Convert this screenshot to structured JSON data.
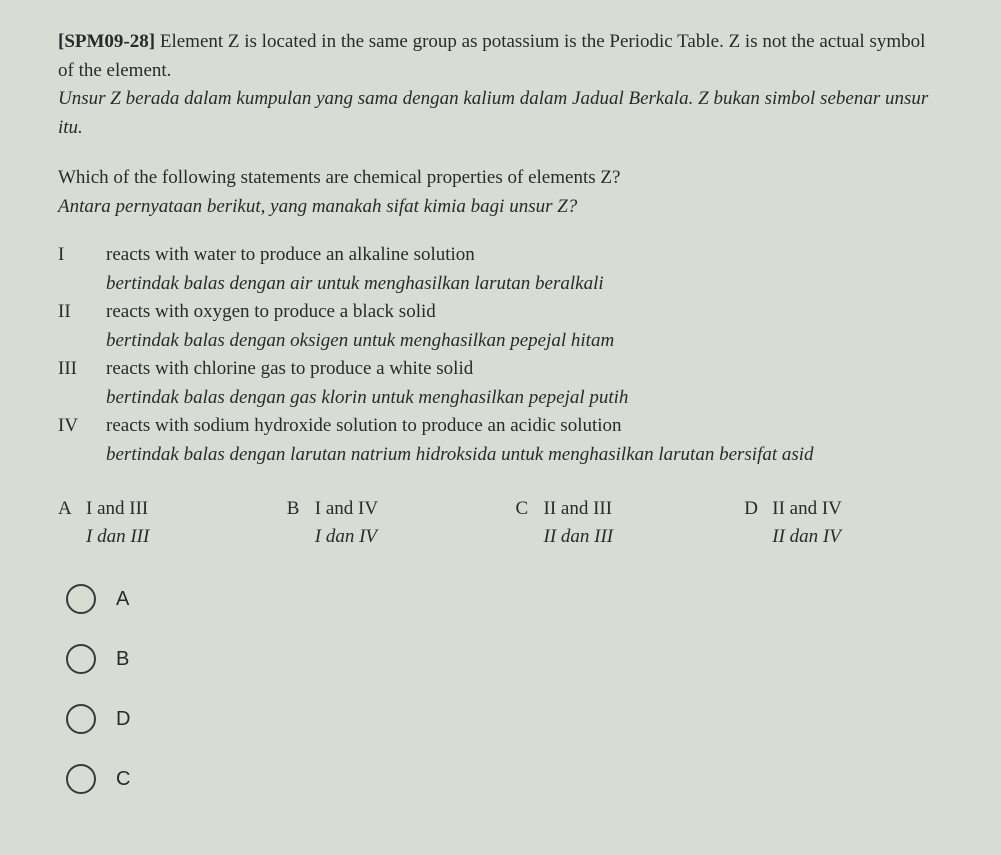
{
  "background_color": "#d8dcd4",
  "text_color": "#2a2a2a",
  "question": {
    "code": "[SPM09-28]",
    "text_en": "Element Z is located in the same group as potassium is the Periodic Table. Z is not the actual symbol of the element.",
    "text_ms": "Unsur Z berada dalam kumpulan yang sama dengan kalium dalam Jadual Berkala. Z bukan simbol sebenar unsur itu."
  },
  "subquestion": {
    "text_en": "Which of the following statements are chemical properties of elements Z?",
    "text_ms": "Antara pernyataan berikut, yang manakah sifat kimia bagi unsur Z?"
  },
  "statements": [
    {
      "num": "I",
      "en": "reacts with water to produce an alkaline solution",
      "ms": "bertindak balas dengan air untuk menghasilkan larutan beralkali"
    },
    {
      "num": "II",
      "en": "reacts with oxygen to produce a black solid",
      "ms": "bertindak balas dengan oksigen untuk menghasilkan pepejal hitam"
    },
    {
      "num": "III",
      "en": "reacts with chlorine gas to produce a white solid",
      "ms": "bertindak balas dengan gas klorin untuk menghasilkan pepejal putih"
    },
    {
      "num": "IV",
      "en": "reacts with sodium hydroxide solution to produce an acidic solution",
      "ms": "bertindak balas dengan larutan natrium hidroksida untuk menghasilkan larutan bersifat asid"
    }
  ],
  "choices": [
    {
      "letter": "A",
      "en": "I and III",
      "ms": "I dan III"
    },
    {
      "letter": "B",
      "en": "I and IV",
      "ms": "I dan IV"
    },
    {
      "letter": "C",
      "en": "II and III",
      "ms": "II dan III"
    },
    {
      "letter": "D",
      "en": "II and IV",
      "ms": "II dan IV"
    }
  ],
  "answer_options": [
    "A",
    "B",
    "D",
    "C"
  ]
}
